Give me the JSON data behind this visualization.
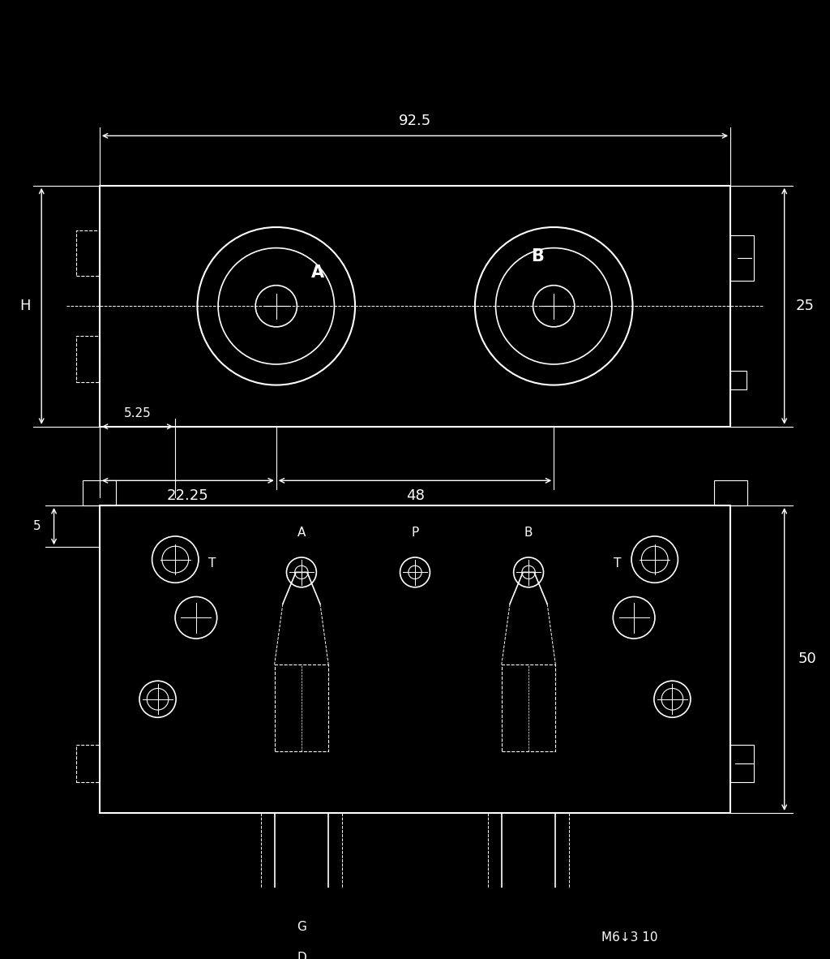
{
  "bg_color": "#000000",
  "line_color": "#ffffff",
  "text_color": "#ffffff",
  "fig_width": 10.24,
  "fig_height": 11.82,
  "annotations": {
    "dim_92": "92.5",
    "dim_22": "22.25",
    "dim_48": "48",
    "dim_25": "25",
    "dim_H": "H",
    "dim_5_25": "5.25",
    "dim_5": "5",
    "dim_50": "50",
    "label_A_top": "A",
    "label_B_top": "B",
    "label_A_bot": "A",
    "label_B_bot": "B",
    "label_P": "P",
    "label_T1": "T",
    "label_T2": "T",
    "label_G": "G",
    "label_D": "D",
    "label_M6": "M6↓3 10"
  }
}
